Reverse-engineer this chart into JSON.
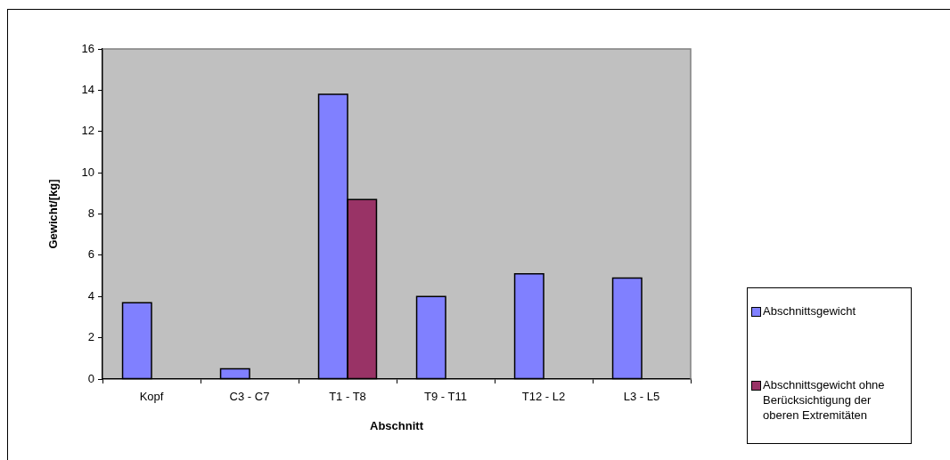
{
  "chart_data": {
    "type": "bar",
    "categories": [
      "Kopf",
      "C3 - C7",
      "T1 - T8",
      "T9 - T11",
      "T12 - L2",
      "L3 - L5"
    ],
    "xlabel": "Abschnitt",
    "ylabel": "Gewicht/[kg]",
    "series": [
      {
        "name": "Abschnittsgewicht",
        "color": "#8080ff",
        "values": [
          3.7,
          0.5,
          13.8,
          4.0,
          5.1,
          4.9
        ]
      },
      {
        "name": "Abschnittsgewicht ohne Berücksichtigung der oberen Extremitäten",
        "color": "#993366",
        "values": [
          null,
          null,
          8.7,
          null,
          null,
          null
        ]
      }
    ],
    "ylim": [
      0,
      16
    ],
    "yticks": [
      0,
      2,
      4,
      6,
      8,
      10,
      12,
      14,
      16
    ],
    "legend": "right"
  }
}
